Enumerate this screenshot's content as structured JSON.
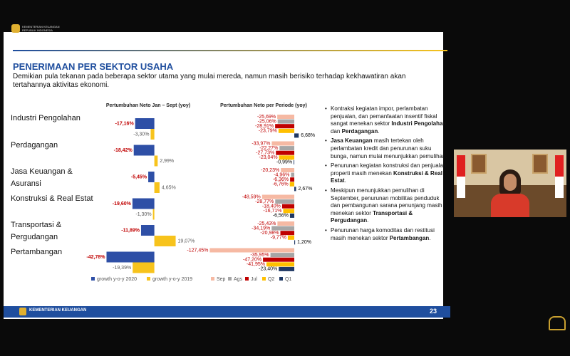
{
  "header": {
    "org_line1": "KEMENTERIAN KEUANGAN",
    "org_line2": "REPUBLIK INDONESIA"
  },
  "slide": {
    "title": "PENERIMAAN PER SEKTOR USAHA",
    "subtitle": "Demikian pula tekanan pada beberapa sektor utama yang mulai mereda, namun masih berisiko terhadap kekhawatiran akan tertahannya aktivitas ekonomi.",
    "bullets": [
      [
        "Kontraksi kegiatan impor, perlambatan penjualan, dan pemanfaatan insentif fiskal sangat menekan sektor ",
        "Industri Pengolahan",
        " dan ",
        "Perdagangan",
        "."
      ],
      [
        "",
        "Jasa Keuangan",
        " masih tertekan oleh perlambatan kredit dan penurunan suku bunga, namun mulai menunjukkan pemulihan."
      ],
      [
        "Penurunan kegiatan konstruksi dan penjualan properti masih menekan ",
        "Konstruksi & Real Estat",
        "."
      ],
      [
        "Meskipun menunjukkan pemulihan di September, penurunan mobilitas penduduk dan pembangunan sarana penunjang masih menekan sektor ",
        "Transportasi & Pergudangan",
        "."
      ],
      [
        "Penurunan harga komoditas dan restitusi masih menekan sektor ",
        "Pertambangan",
        "."
      ]
    ],
    "footer_org": "KEMENTERIAN KEUANGAN",
    "page_number": "23"
  },
  "chart_data": [
    {
      "type": "hbar",
      "title": "Pertumbuhan Neto Jan – Sept (yoy)",
      "categories": [
        "Industri Pengolahan",
        "Perdagangan",
        "Jasa Keuangan & Asuransi",
        "Konstruksi & Real Estat",
        "Transportasi & Pergudangan",
        "Pertambangan"
      ],
      "xlim": [
        -45,
        20
      ],
      "series": [
        {
          "name": "growth y-o-y 2020",
          "color": "#2e4fa6",
          "label_color": "#c00000",
          "values": [
            -17.16,
            -18.42,
            -5.45,
            -19.6,
            -11.89,
            -42.78
          ],
          "value_labels": [
            "-17,16%",
            "-18,42%",
            "-5,45%",
            "-19,60%",
            "-11,89%",
            "-42,78%"
          ]
        },
        {
          "name": "growth y-o-y 2019",
          "color": "#f7c31c",
          "label_color": "#595959",
          "values": [
            -3.3,
            2.99,
            4.65,
            -1.3,
            19.07,
            -19.39
          ],
          "value_labels": [
            "-3,30%",
            "2,99%",
            "4,65%",
            "-1,30%",
            "19,07%",
            "-19,39%"
          ]
        }
      ]
    },
    {
      "type": "hbar",
      "title": "Pertumbuhan Neto per Periode (yoy)",
      "xlim": [
        -130,
        15
      ],
      "series": [
        {
          "name": "Sep",
          "color": "#f6b9a3",
          "label_color": "#c00000",
          "values": [
            -25.69,
            -33.97,
            -20.23,
            -48.59,
            -25.43,
            -127.45
          ],
          "value_labels": [
            "-25,69%",
            "-33,97%",
            "-20,23%",
            "-48,59%",
            "-25,43%",
            "-127,45%"
          ]
        },
        {
          "name": "Ags",
          "color": "#a6a6a6",
          "label_color": "#c00000",
          "values": [
            -25.06,
            -22.27,
            -4.96,
            -28.77,
            -34.19,
            -35.95
          ],
          "value_labels": [
            "-25,06%",
            "-22,27%",
            "-4,96%",
            "-28,77%",
            "-34,19%",
            "-35,95%"
          ]
        },
        {
          "name": "Jul",
          "color": "#c00000",
          "label_color": "#c00000",
          "values": [
            -28.91,
            -27.73,
            -6.36,
            -18.4,
            -20.98,
            -47.2
          ],
          "value_labels": [
            "-28,91%",
            "-27,73%",
            "-6,36%",
            "-18,40%",
            "-20,98%",
            "-47,20%"
          ]
        },
        {
          "name": "Q2",
          "color": "#ffc000",
          "label_color": "#c00000",
          "values": [
            -23.79,
            -23.04,
            -6.76,
            -16.71,
            -9.77,
            -41.95
          ],
          "value_labels": [
            "-23,79%",
            "-23,04%",
            "-6,76%",
            "-16,71%",
            "-9,77%",
            "-41,95%"
          ]
        },
        {
          "name": "Q1",
          "color": "#1f3864",
          "label_color": "#000000",
          "values": [
            6.68,
            -0.99,
            2.67,
            -6.56,
            1.2,
            -23.4
          ],
          "value_labels": [
            "6,68%",
            "-0,99%",
            "2,67%",
            "-6,56%",
            "1,20%",
            "-23,40%"
          ]
        }
      ]
    }
  ]
}
